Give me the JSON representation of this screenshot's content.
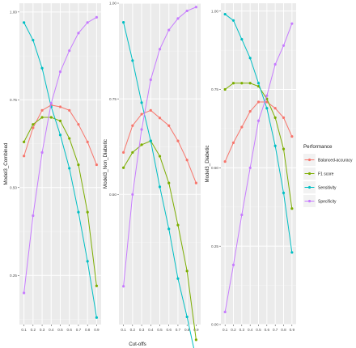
{
  "chart_data": [
    {
      "type": "line",
      "ylabel": "Model3_Combined",
      "x": [
        0.1,
        0.2,
        0.3,
        0.4,
        0.5,
        0.6,
        0.7,
        0.8,
        0.9
      ],
      "ylim": [
        0.11,
        1.025
      ],
      "yticks": [
        0.25,
        0.5,
        0.75,
        1.0
      ],
      "ytick_labels": [
        "0.25",
        "0.50",
        "0.75",
        "1.00"
      ],
      "grid": true,
      "series": [
        {
          "name": "Balanced-accuracy",
          "values": [
            0.59,
            0.67,
            0.72,
            0.735,
            0.73,
            0.72,
            0.68,
            0.63,
            0.565
          ]
        },
        {
          "name": "F1 score",
          "values": [
            0.63,
            0.68,
            0.7,
            0.7,
            0.69,
            0.64,
            0.565,
            0.43,
            0.22
          ]
        },
        {
          "name": "Sensitivity",
          "values": [
            0.97,
            0.92,
            0.84,
            0.73,
            0.65,
            0.555,
            0.43,
            0.29,
            0.13
          ]
        },
        {
          "name": "Specificity",
          "values": [
            0.2,
            0.42,
            0.6,
            0.74,
            0.83,
            0.89,
            0.94,
            0.97,
            0.985
          ]
        }
      ]
    },
    {
      "type": "line",
      "ylabel": "Model3_Non_Diabetic",
      "x": [
        0.1,
        0.2,
        0.3,
        0.4,
        0.5,
        0.6,
        0.7,
        0.8,
        0.9
      ],
      "ylim": [
        0.16,
        1.0
      ],
      "yticks": [
        0.5,
        0.75,
        1.0
      ],
      "ytick_labels": [
        "0.50",
        "0.75",
        "1.00"
      ],
      "grid": true,
      "series": [
        {
          "name": "Balanced-accuracy",
          "values": [
            0.61,
            0.68,
            0.71,
            0.72,
            0.7,
            0.68,
            0.64,
            0.59,
            0.53
          ]
        },
        {
          "name": "F1 score",
          "values": [
            0.57,
            0.61,
            0.63,
            0.64,
            0.6,
            0.53,
            0.42,
            0.3,
            0.12
          ]
        },
        {
          "name": "Sensitivity",
          "values": [
            0.95,
            0.85,
            0.74,
            0.64,
            0.52,
            0.41,
            0.28,
            0.18,
            0.07
          ]
        },
        {
          "name": "Specificity",
          "values": [
            0.26,
            0.5,
            0.67,
            0.8,
            0.88,
            0.93,
            0.96,
            0.98,
            0.99
          ]
        }
      ]
    },
    {
      "type": "line",
      "ylabel": "Model3_Diabetic",
      "x": [
        0.1,
        0.2,
        0.3,
        0.4,
        0.5,
        0.6,
        0.7,
        0.8,
        0.9
      ],
      "ylim": [
        0.0,
        1.025
      ],
      "yticks": [
        0.0,
        0.25,
        0.5,
        0.75,
        1.0
      ],
      "ytick_labels": [
        "0.00",
        "0.25",
        "0.50",
        "0.75",
        "1.00"
      ],
      "grid": true,
      "series": [
        {
          "name": "Balanced-accuracy",
          "values": [
            0.52,
            0.58,
            0.63,
            0.68,
            0.71,
            0.71,
            0.69,
            0.66,
            0.6
          ]
        },
        {
          "name": "F1 score",
          "values": [
            0.75,
            0.77,
            0.77,
            0.77,
            0.76,
            0.72,
            0.66,
            0.56,
            0.37
          ]
        },
        {
          "name": "Sensitivity",
          "values": [
            0.99,
            0.97,
            0.91,
            0.85,
            0.77,
            0.69,
            0.57,
            0.42,
            0.23
          ]
        },
        {
          "name": "Specificity",
          "values": [
            0.04,
            0.19,
            0.35,
            0.5,
            0.65,
            0.73,
            0.83,
            0.89,
            0.96
          ]
        }
      ]
    }
  ],
  "x_tick_labels": [
    "0.1",
    "0.2",
    "0.3",
    "0.4",
    "0.5",
    "0.6",
    "0.7",
    "0.8",
    "0.9"
  ],
  "xlabel": "Cut-offs",
  "legend": {
    "title": "Performance",
    "placement": "right",
    "items": [
      {
        "name": "Balanced-accuracy",
        "color": "#F8766D"
      },
      {
        "name": "F1 score",
        "color": "#7CAE00"
      },
      {
        "name": "Sensitivity",
        "color": "#00BFC4"
      },
      {
        "name": "Specificity",
        "color": "#C77CFF"
      }
    ]
  },
  "colors": {
    "panel_background": "#EBEBEB",
    "grid_major": "#FFFFFF",
    "grid_minor": "#F4F4F4"
  }
}
